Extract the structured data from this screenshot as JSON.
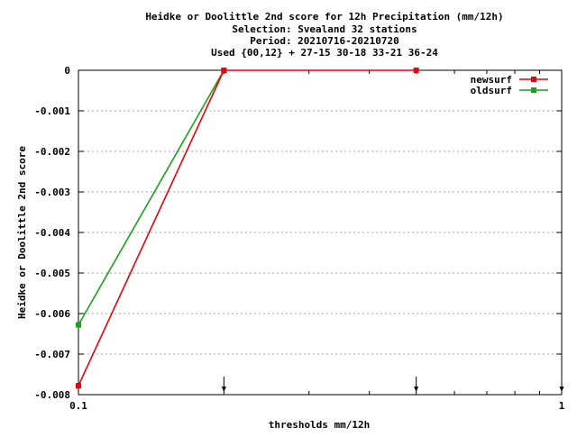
{
  "chart_data": {
    "type": "line",
    "title_lines": [
      "Heidke or Doolittle 2nd score  for 12h Precipitation (mm/12h)",
      "Selection: Svealand     32 stations",
      "Period: 20210716-20210720",
      "Used {00,12} + 27-15 30-18 33-21 36-24"
    ],
    "xlabel": "thresholds mm/12h",
    "ylabel": "Heidke or Doolittle 2nd score",
    "x_scale": "log",
    "xlim": [
      0.1,
      1
    ],
    "ylim": [
      -0.008,
      0
    ],
    "grid": true,
    "legend_position": "top-right",
    "x_tick_labels": [
      {
        "value": 0.1,
        "label": "0.1"
      },
      {
        "value": 1,
        "label": "1"
      }
    ],
    "y_ticks": [
      {
        "value": 0,
        "label": "0"
      },
      {
        "value": -0.001,
        "label": "-0.001"
      },
      {
        "value": -0.002,
        "label": "-0.002"
      },
      {
        "value": -0.003,
        "label": "-0.003"
      },
      {
        "value": -0.004,
        "label": "-0.004"
      },
      {
        "value": -0.005,
        "label": "-0.005"
      },
      {
        "value": -0.006,
        "label": "-0.006"
      },
      {
        "value": -0.007,
        "label": "-0.007"
      },
      {
        "value": -0.008,
        "label": "-0.008"
      }
    ],
    "arrow_markers_x": [
      0.2,
      0.5,
      1
    ],
    "series": [
      {
        "name": "newsurf",
        "color": "#e8000b",
        "x": [
          0.1,
          0.2,
          0.5
        ],
        "y": [
          -0.00778,
          0,
          0
        ]
      },
      {
        "name": "oldsurf",
        "color": "#1aa01a",
        "x": [
          0.1,
          0.2
        ],
        "y": [
          -0.00628,
          0
        ]
      }
    ]
  }
}
